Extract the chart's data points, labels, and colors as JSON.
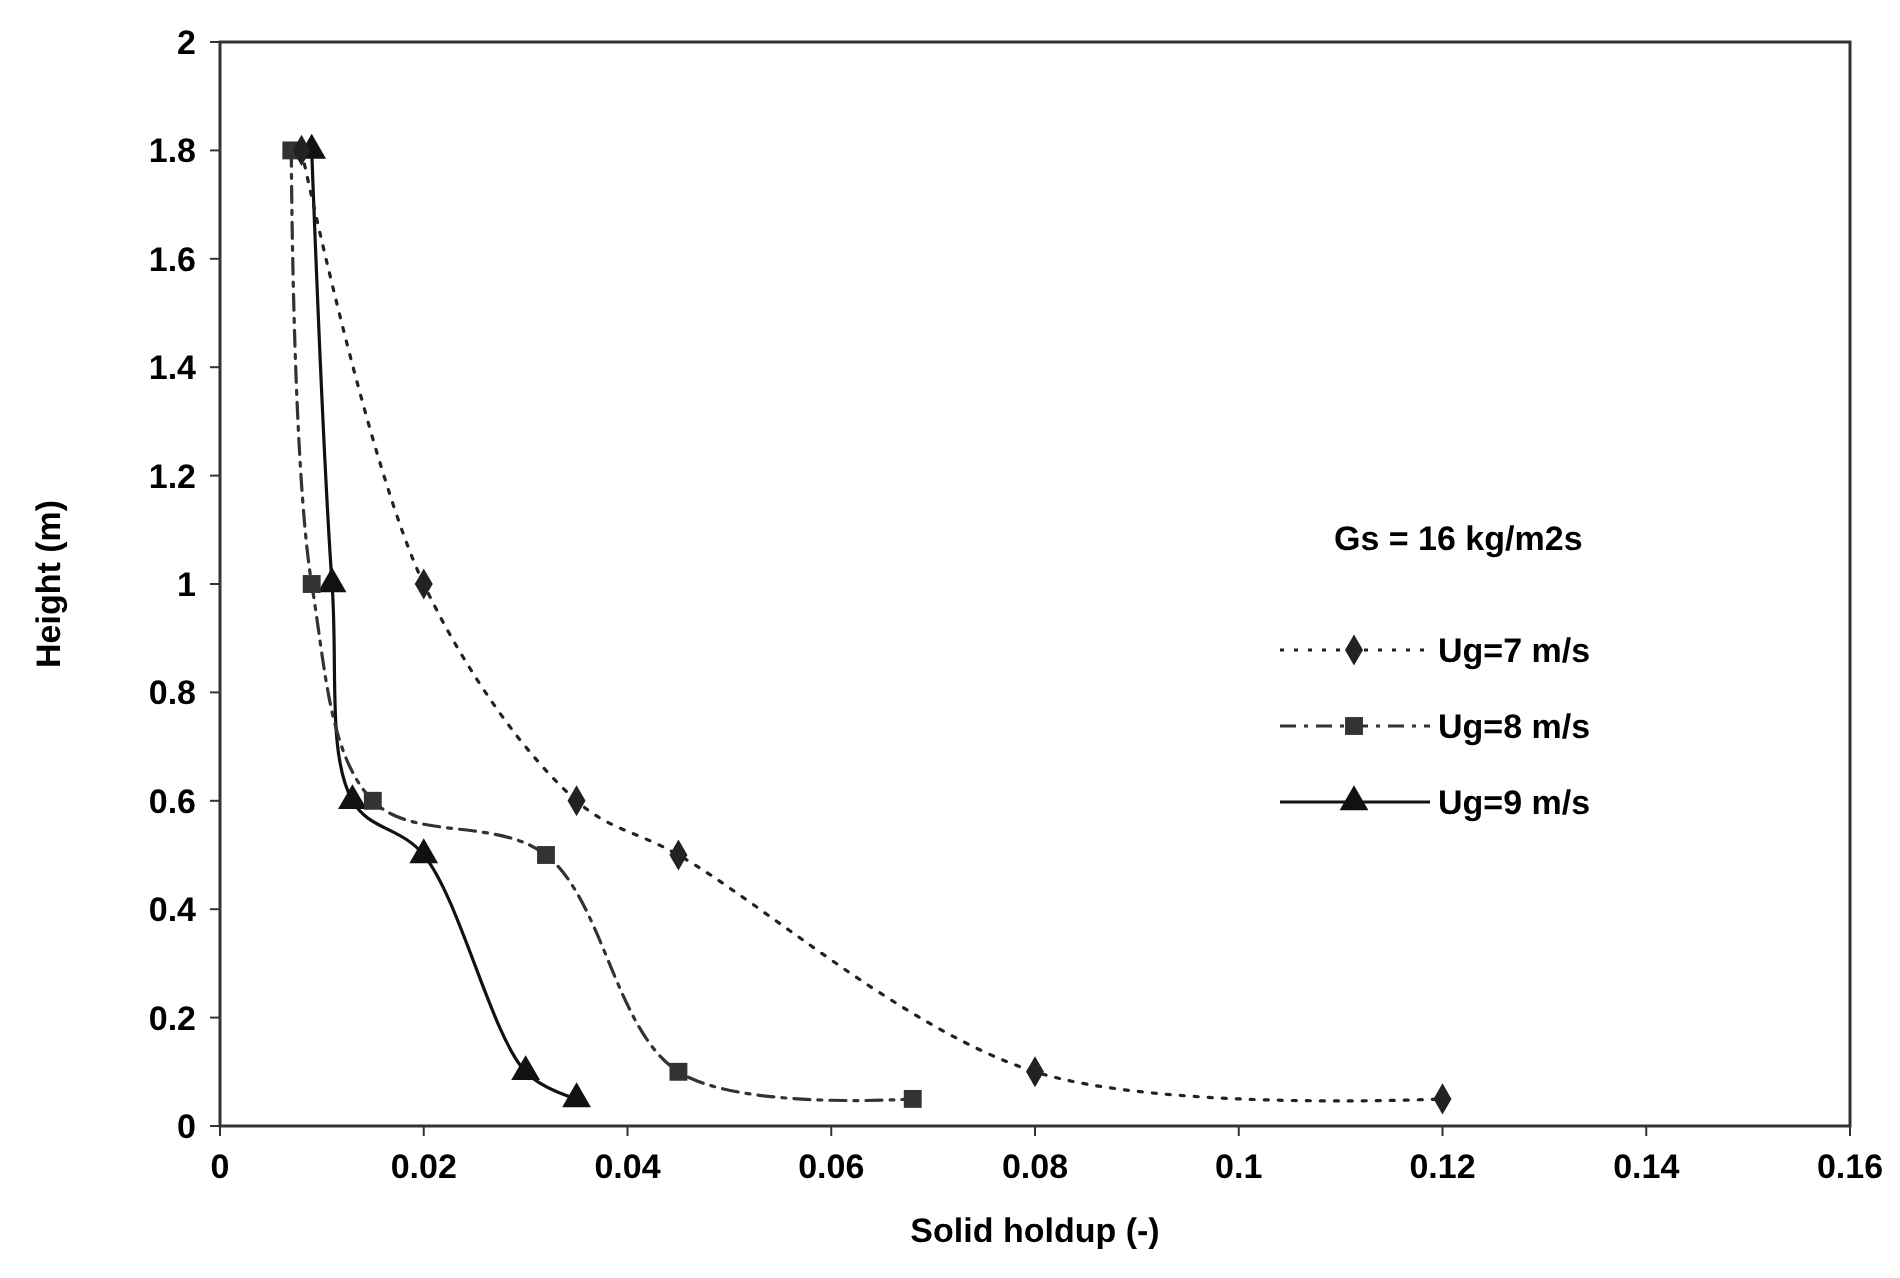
{
  "chart_data": {
    "type": "line",
    "xlabel": "Solid holdup (-)",
    "ylabel": "Height (m)",
    "legend_title": "Gs = 16 kg/m2s",
    "legend": "right",
    "xlim": [
      0,
      0.16
    ],
    "xticks": [
      0,
      0.02,
      0.04,
      0.06,
      0.08,
      0.1,
      0.12,
      0.14,
      0.16
    ],
    "ylim": [
      0,
      2
    ],
    "yticks": [
      0,
      0.2,
      0.4,
      0.6,
      0.8,
      1,
      1.2,
      1.4,
      1.6,
      1.8,
      2
    ],
    "grid": false,
    "series": [
      {
        "name": "Ug=7 m/s",
        "color": "#222222",
        "marker": "diamond",
        "line_style": "dotted",
        "x": [
          0.008,
          0.02,
          0.035,
          0.045,
          0.08,
          0.12
        ],
        "values": [
          1.8,
          1.0,
          0.6,
          0.5,
          0.1,
          0.05
        ]
      },
      {
        "name": "Ug=8 m/s",
        "color": "#333333",
        "marker": "square",
        "line_style": "dashed",
        "x": [
          0.007,
          0.009,
          0.015,
          0.032,
          0.045,
          0.068
        ],
        "values": [
          1.8,
          1.0,
          0.6,
          0.5,
          0.1,
          0.05
        ]
      },
      {
        "name": "Ug=9 m/s",
        "color": "#111111",
        "marker": "triangle",
        "line_style": "solid",
        "x": [
          0.009,
          0.011,
          0.013,
          0.02,
          0.03,
          0.035
        ],
        "values": [
          1.8,
          1.0,
          0.6,
          0.5,
          0.1,
          0.05
        ]
      }
    ]
  }
}
